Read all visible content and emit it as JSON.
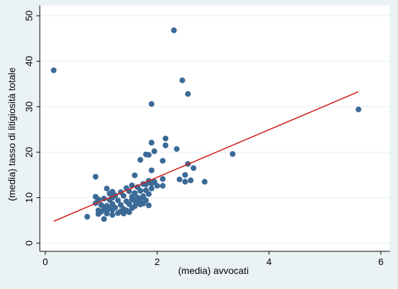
{
  "chart_data": {
    "type": "scatter",
    "title": "",
    "xlabel": "(media) avvocati",
    "ylabel": "(media) tasso di litigiosità totale",
    "xlim": [
      0,
      6
    ],
    "ylim": [
      0,
      50
    ],
    "xticks": [
      0,
      2,
      4,
      6
    ],
    "yticks": [
      0,
      10,
      20,
      30,
      40,
      50
    ],
    "grid": true,
    "legend": "none",
    "point_color": "#3b6a96",
    "fit_color": "#d62020",
    "points": [
      [
        0.15,
        38
      ],
      [
        2.3,
        46.8
      ],
      [
        2.45,
        35.8
      ],
      [
        2.55,
        32.8
      ],
      [
        1.9,
        30.6
      ],
      [
        5.6,
        29.4
      ],
      [
        2.15,
        23
      ],
      [
        1.9,
        22.1
      ],
      [
        2.15,
        21.5
      ],
      [
        2.35,
        20.7
      ],
      [
        1.95,
        20.2
      ],
      [
        3.35,
        19.6
      ],
      [
        1.8,
        19.5
      ],
      [
        1.85,
        19.4
      ],
      [
        1.7,
        18.3
      ],
      [
        2.1,
        18.1
      ],
      [
        2.55,
        17.4
      ],
      [
        2.65,
        16.5
      ],
      [
        1.9,
        16
      ],
      [
        0.9,
        14.6
      ],
      [
        1.6,
        14.9
      ],
      [
        2.5,
        15
      ],
      [
        2.4,
        14
      ],
      [
        2.6,
        13.8
      ],
      [
        2.85,
        13.5
      ],
      [
        2.5,
        13.5
      ],
      [
        2.1,
        14.1
      ],
      [
        1.85,
        13.7
      ],
      [
        1.95,
        13.5
      ],
      [
        1.9,
        13.1
      ],
      [
        1.8,
        12.9
      ],
      [
        2.0,
        12.6
      ],
      [
        2.1,
        12.6
      ],
      [
        1.75,
        13
      ],
      [
        1.55,
        12.7
      ],
      [
        1.65,
        12.3
      ],
      [
        1.45,
        12.1
      ],
      [
        1.1,
        12
      ],
      [
        1.2,
        11.3
      ],
      [
        1.35,
        11.2
      ],
      [
        1.5,
        11.4
      ],
      [
        1.6,
        11
      ],
      [
        1.7,
        11.5
      ],
      [
        1.8,
        11.6
      ],
      [
        1.9,
        12
      ],
      [
        1.15,
        10.9
      ],
      [
        1.25,
        10.5
      ],
      [
        1.4,
        10.4
      ],
      [
        1.55,
        10.2
      ],
      [
        1.65,
        10
      ],
      [
        1.75,
        10.3
      ],
      [
        1.85,
        10.8
      ],
      [
        0.9,
        10.2
      ],
      [
        0.95,
        9.6
      ],
      [
        1.05,
        9.8
      ],
      [
        1.15,
        9.5
      ],
      [
        1.2,
        10
      ],
      [
        1.3,
        9.4
      ],
      [
        1.45,
        9.2
      ],
      [
        1.55,
        9.6
      ],
      [
        1.6,
        9.3
      ],
      [
        1.7,
        9.7
      ],
      [
        1.8,
        9.4
      ],
      [
        1.0,
        8.4
      ],
      [
        1.1,
        8.2
      ],
      [
        1.2,
        8.6
      ],
      [
        1.35,
        8.4
      ],
      [
        1.5,
        8.6
      ],
      [
        1.65,
        8.8
      ],
      [
        1.75,
        8.7
      ],
      [
        1.85,
        8.3
      ],
      [
        0.9,
        8.8
      ],
      [
        1.05,
        7.8
      ],
      [
        1.15,
        7.6
      ],
      [
        1.25,
        7.8
      ],
      [
        1.4,
        7.5
      ],
      [
        1.55,
        7.7
      ],
      [
        1.6,
        8.1
      ],
      [
        1.7,
        8.5
      ],
      [
        0.95,
        7.2
      ],
      [
        1.0,
        6.9
      ],
      [
        1.1,
        7.1
      ],
      [
        1.2,
        7.3
      ],
      [
        1.35,
        7
      ],
      [
        1.45,
        7.2
      ],
      [
        1.3,
        6.6
      ],
      [
        1.5,
        6.8
      ],
      [
        1.1,
        6.5
      ],
      [
        0.95,
        6.4
      ],
      [
        0.75,
        5.8
      ],
      [
        1.05,
        5.3
      ],
      [
        1.2,
        6.2
      ],
      [
        1.4,
        6.5
      ]
    ],
    "fit_line": {
      "x": [
        0.15,
        5.6
      ],
      "y": [
        4.8,
        33.3
      ]
    }
  }
}
